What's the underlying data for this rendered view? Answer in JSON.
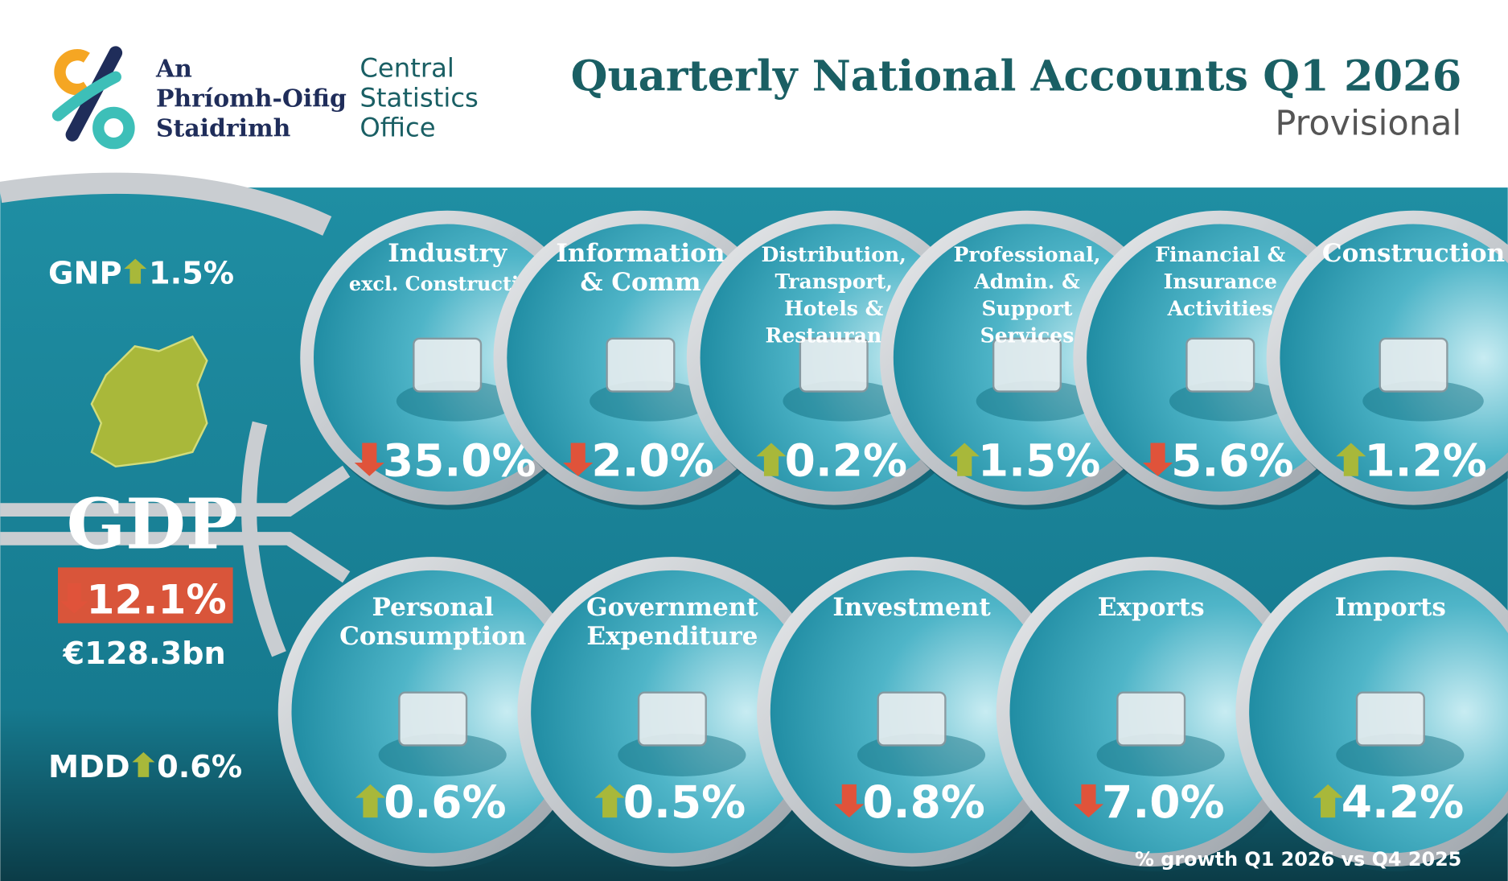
{
  "header": {
    "logo_irish": [
      "An",
      "Phríomh-Oifig",
      "Staidrimh"
    ],
    "logo_english": [
      "Central",
      "Statistics",
      "Office"
    ],
    "title": "Quarterly National Accounts Q1 2026",
    "subtitle": "Provisional"
  },
  "summary": {
    "gnp": {
      "label": "GNP",
      "direction": "up",
      "value": "1.5%"
    },
    "gdp": {
      "label": "GDP",
      "direction": "down",
      "value": "12.1%",
      "level": "€128.3bn"
    },
    "mdd": {
      "label": "MDD",
      "direction": "up",
      "value": "0.6%"
    }
  },
  "sectors": [
    {
      "name": [
        "Industry",
        "excl. Construction"
      ],
      "direction": "down",
      "value": "35.0%"
    },
    {
      "name": [
        "Information",
        "& Comm"
      ],
      "direction": "down",
      "value": "2.0%"
    },
    {
      "name": [
        "Distribution,",
        "Transport,",
        "Hotels &",
        "Restaurants"
      ],
      "direction": "up",
      "value": "0.2%"
    },
    {
      "name": [
        "Professional,",
        "Admin. &",
        "Support",
        "Services"
      ],
      "direction": "up",
      "value": "1.5%"
    },
    {
      "name": [
        "Financial &",
        "Insurance",
        "Activities"
      ],
      "direction": "down",
      "value": "5.6%"
    },
    {
      "name": [
        "Construction"
      ],
      "direction": "up",
      "value": "1.2%"
    }
  ],
  "expenditure": [
    {
      "name": [
        "Personal",
        "Consumption"
      ],
      "direction": "up",
      "value": "0.6%"
    },
    {
      "name": [
        "Government",
        "Expenditure"
      ],
      "direction": "up",
      "value": "0.5%"
    },
    {
      "name": [
        "Investment"
      ],
      "direction": "down",
      "value": "0.8%"
    },
    {
      "name": [
        "Exports"
      ],
      "direction": "down",
      "value": "7.0%"
    },
    {
      "name": [
        "Imports"
      ],
      "direction": "up",
      "value": "4.2%"
    }
  ],
  "footnote": "% growth Q1 2026 vs Q4 2025"
}
